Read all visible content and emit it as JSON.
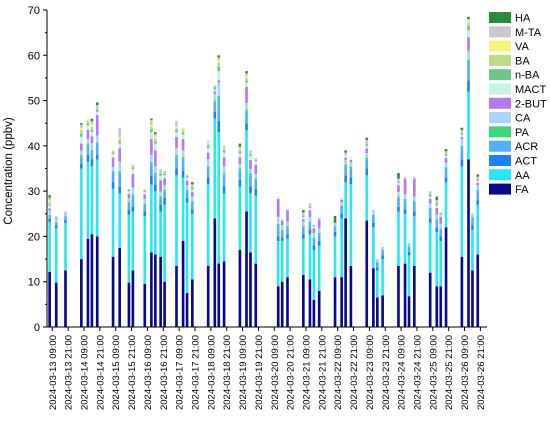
{
  "chart_data": {
    "type": "bar",
    "stacked": true,
    "ylabel": "Concentration (ppbv)",
    "xlabel": "",
    "ylim": [
      0,
      70
    ],
    "yticks": [
      0,
      10,
      20,
      30,
      40,
      50,
      60,
      70
    ],
    "grid": false,
    "legend_placement": "top-right",
    "x_tick_labels": [
      "2024-03-13 09:00",
      "2024-03-13 21:00",
      "2024-03-14 09:00",
      "2024-03-14 21:00",
      "2024-03-15 09:00",
      "2024-03-15 21:00",
      "2024-03-16 09:00",
      "2024-03-16 21:00",
      "2024-03-17 09:00",
      "2024-03-17 21:00",
      "2024-03-18 09:00",
      "2024-03-18 21:00",
      "2024-03-19 09:00",
      "2024-03-19 21:00",
      "2024-03-20 09:00",
      "2024-03-20 21:00",
      "2024-03-21 09:00",
      "2024-03-21 21:00",
      "2024-03-22 09:00",
      "2024-03-22 21:00",
      "2024-03-23 09:00",
      "2024-03-23 21:00",
      "2024-03-24 09:00",
      "2024-03-24 21:00",
      "2024-03-25 09:00",
      "2024-03-25 21:00",
      "2024-03-26 09:00",
      "2024-03-26 21:00"
    ],
    "x_start": "2024-03-13 05:00",
    "x_end": "2024-03-27 02:00",
    "bar_width_hours": 2,
    "series_order_bottom_to_top": [
      "FA",
      "AA",
      "ACT",
      "ACR",
      "PA",
      "CA",
      "2-BUT",
      "MACT",
      "n-BA",
      "BA",
      "VA",
      "M-TA",
      "HA"
    ],
    "colors": {
      "FA": "#08088a",
      "AA": "#29e6f0",
      "ACT": "#1a82f2",
      "ACR": "#4fb0f7",
      "PA": "#3fd67a",
      "CA": "#a8d4ff",
      "2-BUT": "#b478f0",
      "MACT": "#c6f2e8",
      "n-BA": "#6fc48a",
      "BA": "#bcdc8c",
      "VA": "#f4f47c",
      "M-TA": "#c8c8c8",
      "HA": "#2e8b3c"
    },
    "legend_order": [
      "HA",
      "M-TA",
      "VA",
      "BA",
      "n-BA",
      "MACT",
      "2-BUT",
      "CA",
      "PA",
      "ACR",
      "ACT",
      "AA",
      "FA"
    ],
    "samples": [
      {
        "t": "2024-03-13 07:00",
        "FA": 12.2,
        "AA": 11.0,
        "ACT": 0.7,
        "ACR": 0.6,
        "PA": 0.3,
        "CA": 0.9,
        "2-BUT": 0.5,
        "MACT": 0.6,
        "n-BA": 0.3,
        "BA": 0.5,
        "VA": 0.4,
        "M-TA": 0.6,
        "HA": 0.5
      },
      {
        "t": "2024-03-13 12:00",
        "FA": 9.8,
        "AA": 12.0,
        "ACT": 0.6,
        "ACR": 0.6,
        "PA": 0.2,
        "CA": 0.6,
        "2-BUT": 0.3,
        "MACT": 0.3,
        "n-BA": 0.1,
        "BA": 0.0,
        "VA": 0.0,
        "M-TA": 0.0,
        "HA": 0.0
      },
      {
        "t": "2024-03-13 19:00",
        "FA": 12.5,
        "AA": 10.5,
        "ACT": 0.7,
        "ACR": 0.6,
        "PA": 0.2,
        "CA": 0.5,
        "2-BUT": 0.2,
        "MACT": 0.3,
        "n-BA": 0.1,
        "BA": 0.0,
        "VA": 0.0,
        "M-TA": 0.0,
        "HA": 0.0
      },
      {
        "t": "2024-03-14 07:00",
        "FA": 15.0,
        "AA": 20.0,
        "ACT": 1.0,
        "ACR": 1.5,
        "PA": 0.5,
        "CA": 1.0,
        "2-BUT": 1.5,
        "MACT": 1.5,
        "n-BA": 0.7,
        "BA": 0.8,
        "VA": 0.5,
        "M-TA": 0.7,
        "HA": 0.3
      },
      {
        "t": "2024-03-14 12:00",
        "FA": 19.5,
        "AA": 17.0,
        "ACT": 1.5,
        "ACR": 2.0,
        "PA": 0.5,
        "CA": 1.0,
        "2-BUT": 2.0,
        "MACT": 1.0,
        "n-BA": 0.5,
        "BA": 0.6,
        "VA": 0.4,
        "M-TA": 0.0,
        "HA": 0.0
      },
      {
        "t": "2024-03-14 15:00",
        "FA": 20.5,
        "AA": 15.0,
        "ACT": 1.5,
        "ACR": 1.5,
        "PA": 0.6,
        "CA": 1.5,
        "2-BUT": 1.5,
        "MACT": 1.0,
        "n-BA": 0.5,
        "BA": 0.6,
        "VA": 0.6,
        "M-TA": 0.6,
        "HA": 0.6
      },
      {
        "t": "2024-03-14 19:00",
        "FA": 20.0,
        "AA": 17.0,
        "ACT": 1.0,
        "ACR": 2.5,
        "PA": 0.3,
        "CA": 1.5,
        "2-BUT": 4.5,
        "MACT": 0.7,
        "n-BA": 0.4,
        "BA": 0.5,
        "VA": 0.0,
        "M-TA": 0.6,
        "HA": 0.6
      },
      {
        "t": "2024-03-15 07:00",
        "FA": 15.5,
        "AA": 15.0,
        "ACT": 1.5,
        "ACR": 2.0,
        "PA": 0.4,
        "CA": 1.0,
        "2-BUT": 2.0,
        "MACT": 0.8,
        "n-BA": 0.3,
        "BA": 0.3,
        "VA": 0.0,
        "M-TA": 0.2,
        "HA": 0.0
      },
      {
        "t": "2024-03-15 12:00",
        "FA": 17.5,
        "AA": 12.0,
        "ACT": 1.5,
        "ACR": 3.0,
        "PA": 0.5,
        "CA": 2.0,
        "2-BUT": 3.0,
        "MACT": 1.0,
        "n-BA": 0.5,
        "BA": 0.5,
        "VA": 0.3,
        "M-TA": 2.2,
        "HA": 0.0
      },
      {
        "t": "2024-03-15 19:00",
        "FA": 9.8,
        "AA": 15.0,
        "ACT": 1.0,
        "ACR": 1.5,
        "PA": 0.3,
        "CA": 0.8,
        "2-BUT": 1.0,
        "MACT": 0.6,
        "n-BA": 0.3,
        "BA": 0.2,
        "VA": 0.0,
        "M-TA": 0.0,
        "HA": 0.0
      },
      {
        "t": "2024-03-15 22:00",
        "FA": 12.5,
        "AA": 13.0,
        "ACT": 1.0,
        "ACR": 2.5,
        "PA": 0.3,
        "CA": 1.5,
        "2-BUT": 3.0,
        "MACT": 1.0,
        "n-BA": 0.5,
        "BA": 0.4,
        "VA": 0.3,
        "M-TA": 0.0,
        "HA": 0.0
      },
      {
        "t": "2024-03-16 07:00",
        "FA": 9.5,
        "AA": 15.0,
        "ACT": 1.0,
        "ACR": 1.5,
        "PA": 0.3,
        "CA": 1.0,
        "2-BUT": 1.0,
        "MACT": 0.5,
        "n-BA": 0.3,
        "BA": 0.3,
        "VA": 0.0,
        "M-TA": 0.0,
        "HA": 0.0
      },
      {
        "t": "2024-03-16 12:00",
        "FA": 16.5,
        "AA": 15.0,
        "ACT": 2.0,
        "ACR": 2.5,
        "PA": 0.5,
        "CA": 1.5,
        "2-BUT": 3.5,
        "MACT": 1.5,
        "n-BA": 0.6,
        "BA": 0.6,
        "VA": 0.5,
        "M-TA": 1.0,
        "HA": 0.3
      },
      {
        "t": "2024-03-16 15:00",
        "FA": 16.0,
        "AA": 14.0,
        "ACT": 1.5,
        "ACR": 2.0,
        "PA": 0.5,
        "CA": 1.5,
        "2-BUT": 3.5,
        "MACT": 1.5,
        "n-BA": 0.5,
        "BA": 0.6,
        "VA": 0.5,
        "M-TA": 0.5,
        "HA": 0.4
      },
      {
        "t": "2024-03-16 19:00",
        "FA": 15.5,
        "AA": 10.0,
        "ACT": 1.5,
        "ACR": 1.5,
        "PA": 0.4,
        "CA": 1.0,
        "2-BUT": 2.5,
        "MACT": 1.0,
        "n-BA": 0.5,
        "BA": 0.5,
        "VA": 0.0,
        "M-TA": 0.5,
        "HA": 0.0
      },
      {
        "t": "2024-03-16 22:00",
        "FA": 10.0,
        "AA": 17.0,
        "ACT": 1.5,
        "ACR": 1.5,
        "PA": 0.3,
        "CA": 1.0,
        "2-BUT": 1.5,
        "MACT": 0.7,
        "n-BA": 0.3,
        "BA": 0.3,
        "VA": 0.0,
        "M-TA": 0.4,
        "HA": 0.0
      },
      {
        "t": "2024-03-17 07:00",
        "FA": 13.5,
        "AA": 20.0,
        "ACT": 1.5,
        "ACR": 2.5,
        "PA": 0.5,
        "CA": 1.5,
        "2-BUT": 2.5,
        "MACT": 1.0,
        "n-BA": 0.5,
        "BA": 0.5,
        "VA": 0.3,
        "M-TA": 1.2,
        "HA": 0.0
      },
      {
        "t": "2024-03-17 12:00",
        "FA": 19.0,
        "AA": 14.0,
        "ACT": 1.5,
        "ACR": 2.5,
        "PA": 0.5,
        "CA": 1.5,
        "2-BUT": 2.5,
        "MACT": 1.0,
        "n-BA": 0.5,
        "BA": 0.6,
        "VA": 0.4,
        "M-TA": 0.0,
        "HA": 0.0
      },
      {
        "t": "2024-03-17 15:00",
        "FA": 7.5,
        "AA": 20.0,
        "ACT": 1.0,
        "ACR": 1.5,
        "PA": 0.3,
        "CA": 1.0,
        "2-BUT": 1.0,
        "MACT": 0.7,
        "n-BA": 0.3,
        "BA": 0.3,
        "VA": 0.2,
        "M-TA": 0.0,
        "HA": 0.0
      },
      {
        "t": "2024-03-17 19:00",
        "FA": 10.5,
        "AA": 14.5,
        "ACT": 1.0,
        "ACR": 1.5,
        "PA": 0.3,
        "CA": 1.0,
        "2-BUT": 1.0,
        "MACT": 0.6,
        "n-BA": 0.3,
        "BA": 0.3,
        "VA": 0.0,
        "M-TA": 0.5,
        "HA": 0.5
      },
      {
        "t": "2024-03-18 07:00",
        "FA": 13.5,
        "AA": 18.0,
        "ACT": 1.5,
        "ACR": 2.0,
        "PA": 0.5,
        "CA": 1.5,
        "2-BUT": 1.5,
        "MACT": 1.0,
        "n-BA": 0.5,
        "BA": 0.5,
        "VA": 0.3,
        "M-TA": 0.3,
        "HA": 0.0
      },
      {
        "t": "2024-03-18 12:00",
        "FA": 24.0,
        "AA": 22.0,
        "ACT": 1.5,
        "ACR": 2.0,
        "PA": 0.5,
        "CA": 1.5,
        "2-BUT": 0.5,
        "MACT": 0.5,
        "n-BA": 0.5,
        "BA": 0.3,
        "VA": 0.3,
        "M-TA": 0.0,
        "HA": 0.0
      },
      {
        "t": "2024-03-18 15:00",
        "FA": 14.0,
        "AA": 29.0,
        "ACT": 2.5,
        "ACR": 4.5,
        "PA": 1.0,
        "CA": 3.0,
        "2-BUT": 0.5,
        "MACT": 2.0,
        "n-BA": 1.0,
        "BA": 0.8,
        "VA": 0.7,
        "M-TA": 0.5,
        "HA": 0.5
      },
      {
        "t": "2024-03-18 19:00",
        "FA": 14.5,
        "AA": 15.0,
        "ACT": 1.5,
        "ACR": 2.5,
        "PA": 0.5,
        "CA": 1.5,
        "2-BUT": 2.0,
        "MACT": 1.0,
        "n-BA": 0.5,
        "BA": 0.5,
        "VA": 0.0,
        "M-TA": 0.5,
        "HA": 0.0
      },
      {
        "t": "2024-03-19 07:00",
        "FA": 17.0,
        "AA": 14.0,
        "ACT": 1.5,
        "ACR": 2.0,
        "PA": 0.5,
        "CA": 1.0,
        "2-BUT": 1.5,
        "MACT": 0.8,
        "n-BA": 0.5,
        "BA": 0.4,
        "VA": 0.3,
        "M-TA": 0.3,
        "HA": 0.7
      },
      {
        "t": "2024-03-19 12:00",
        "FA": 25.5,
        "AA": 18.0,
        "ACT": 1.5,
        "ACR": 2.5,
        "PA": 0.5,
        "CA": 1.5,
        "2-BUT": 3.5,
        "MACT": 1.0,
        "n-BA": 0.5,
        "BA": 0.5,
        "VA": 0.5,
        "M-TA": 0.5,
        "HA": 0.5
      },
      {
        "t": "2024-03-19 15:00",
        "FA": 16.5,
        "AA": 13.0,
        "ACT": 1.5,
        "ACR": 2.5,
        "PA": 0.4,
        "CA": 1.0,
        "2-BUT": 2.0,
        "MACT": 0.8,
        "n-BA": 0.4,
        "BA": 0.4,
        "VA": 0.0,
        "M-TA": 0.5,
        "HA": 0.0
      },
      {
        "t": "2024-03-19 19:00",
        "FA": 14.0,
        "AA": 15.0,
        "ACT": 1.5,
        "ACR": 2.0,
        "PA": 0.3,
        "CA": 1.0,
        "2-BUT": 2.0,
        "MACT": 0.8,
        "n-BA": 0.3,
        "BA": 0.4,
        "VA": 0.0,
        "M-TA": 0.0,
        "HA": 0.0
      },
      {
        "t": "2024-03-20 12:00",
        "FA": 9.0,
        "AA": 10.0,
        "ACT": 1.0,
        "ACR": 2.5,
        "PA": 0.3,
        "CA": 1.5,
        "2-BUT": 4.0,
        "MACT": 0.5,
        "n-BA": 0.0,
        "BA": 0.0,
        "VA": 0.0,
        "M-TA": 0.0,
        "HA": 0.0
      },
      {
        "t": "2024-03-20 15:00",
        "FA": 10.0,
        "AA": 9.0,
        "ACT": 0.8,
        "ACR": 1.5,
        "PA": 0.2,
        "CA": 1.0,
        "2-BUT": 1.0,
        "MACT": 0.4,
        "n-BA": 0.0,
        "BA": 0.0,
        "VA": 0.0,
        "M-TA": 0.0,
        "HA": 0.0
      },
      {
        "t": "2024-03-20 19:00",
        "FA": 11.0,
        "AA": 8.5,
        "ACT": 1.0,
        "ACR": 1.5,
        "PA": 0.3,
        "CA": 1.0,
        "2-BUT": 2.5,
        "MACT": 0.4,
        "n-BA": 0.0,
        "BA": 0.0,
        "VA": 0.0,
        "M-TA": 0.0,
        "HA": 0.0
      },
      {
        "t": "2024-03-21 07:00",
        "FA": 11.5,
        "AA": 8.0,
        "ACT": 1.0,
        "ACR": 1.5,
        "PA": 0.3,
        "CA": 1.0,
        "2-BUT": 0.5,
        "MACT": 0.5,
        "n-BA": 0.3,
        "BA": 0.2,
        "VA": 0.0,
        "M-TA": 0.5,
        "HA": 0.5
      },
      {
        "t": "2024-03-21 12:00",
        "FA": 10.5,
        "AA": 10.0,
        "ACT": 1.0,
        "ACR": 1.5,
        "PA": 0.3,
        "CA": 1.0,
        "2-BUT": 1.5,
        "MACT": 0.5,
        "n-BA": 0.3,
        "BA": 0.2,
        "VA": 0.0,
        "M-TA": 0.5,
        "HA": 0.0
      },
      {
        "t": "2024-03-21 15:00",
        "FA": 6.0,
        "AA": 11.0,
        "ACT": 1.0,
        "ACR": 1.5,
        "PA": 0.3,
        "CA": 1.0,
        "2-BUT": 1.0,
        "MACT": 0.5,
        "n-BA": 0.2,
        "BA": 0.0,
        "VA": 0.0,
        "M-TA": 0.0,
        "HA": 0.0
      },
      {
        "t": "2024-03-21 19:00",
        "FA": 8.0,
        "AA": 10.0,
        "ACT": 1.0,
        "ACR": 1.5,
        "PA": 0.3,
        "CA": 1.0,
        "2-BUT": 2.0,
        "MACT": 0.5,
        "n-BA": 0.0,
        "BA": 0.0,
        "VA": 0.0,
        "M-TA": 0.0,
        "HA": 0.0
      },
      {
        "t": "2024-03-22 07:00",
        "FA": 11.0,
        "AA": 9.0,
        "ACT": 1.0,
        "ACR": 1.0,
        "PA": 0.3,
        "CA": 0.5,
        "2-BUT": 0.0,
        "MACT": 0.0,
        "n-BA": 0.0,
        "BA": 0.0,
        "VA": 0.0,
        "M-TA": 0.2,
        "HA": 1.5
      },
      {
        "t": "2024-03-22 12:00",
        "FA": 11.0,
        "AA": 13.0,
        "ACT": 1.0,
        "ACR": 1.5,
        "PA": 0.3,
        "CA": 0.8,
        "2-BUT": 0.5,
        "MACT": 0.4,
        "n-BA": 0.0,
        "BA": 0.0,
        "VA": 0.0,
        "M-TA": 0.0,
        "HA": 0.0
      },
      {
        "t": "2024-03-22 15:00",
        "FA": 24.0,
        "AA": 8.0,
        "ACT": 1.5,
        "ACR": 2.0,
        "PA": 0.4,
        "CA": 1.0,
        "2-BUT": 0.5,
        "MACT": 0.6,
        "n-BA": 0.0,
        "BA": 0.0,
        "VA": 0.0,
        "M-TA": 0.5,
        "HA": 0.5
      },
      {
        "t": "2024-03-22 19:00",
        "FA": 13.5,
        "AA": 18.0,
        "ACT": 1.5,
        "ACR": 2.0,
        "PA": 0.4,
        "CA": 1.0,
        "2-BUT": 0.5,
        "MACT": 0.6,
        "n-BA": 0.0,
        "BA": 0.0,
        "VA": 0.0,
        "M-TA": 0.0,
        "HA": 0.0
      },
      {
        "t": "2024-03-23 07:00",
        "FA": 23.5,
        "AA": 10.0,
        "ACT": 1.5,
        "ACR": 2.0,
        "PA": 0.4,
        "CA": 1.0,
        "2-BUT": 1.0,
        "MACT": 0.6,
        "n-BA": 0.3,
        "BA": 0.3,
        "VA": 0.0,
        "M-TA": 0.7,
        "HA": 0.5
      },
      {
        "t": "2024-03-23 12:00",
        "FA": 13.0,
        "AA": 9.0,
        "ACT": 1.0,
        "ACR": 1.5,
        "PA": 0.3,
        "CA": 1.0,
        "2-BUT": 0.0,
        "MACT": 0.0,
        "n-BA": 0.0,
        "BA": 0.0,
        "VA": 0.0,
        "M-TA": 0.0,
        "HA": 0.0
      },
      {
        "t": "2024-03-23 15:00",
        "FA": 6.5,
        "AA": 6.0,
        "ACT": 0.7,
        "ACR": 1.0,
        "PA": 0.2,
        "CA": 0.6,
        "2-BUT": 0.0,
        "MACT": 0.0,
        "n-BA": 0.0,
        "BA": 0.0,
        "VA": 0.0,
        "M-TA": 0.0,
        "HA": 0.0
      },
      {
        "t": "2024-03-23 19:00",
        "FA": 7.0,
        "AA": 8.0,
        "ACT": 0.8,
        "ACR": 1.0,
        "PA": 0.2,
        "CA": 0.7,
        "2-BUT": 0.0,
        "MACT": 0.0,
        "n-BA": 0.0,
        "BA": 0.0,
        "VA": 0.0,
        "M-TA": 0.0,
        "HA": 0.0
      },
      {
        "t": "2024-03-24 07:00",
        "FA": 13.5,
        "AA": 12.0,
        "ACT": 1.0,
        "ACR": 2.0,
        "PA": 0.3,
        "CA": 1.0,
        "2-BUT": 1.5,
        "MACT": 0.5,
        "n-BA": 0.3,
        "BA": 0.2,
        "VA": 0.0,
        "M-TA": 0.5,
        "HA": 1.2
      },
      {
        "t": "2024-03-24 12:00",
        "FA": 14.0,
        "AA": 11.0,
        "ACT": 1.0,
        "ACR": 2.0,
        "PA": 0.3,
        "CA": 1.0,
        "2-BUT": 3.5,
        "MACT": 0.5,
        "n-BA": 0.0,
        "BA": 0.0,
        "VA": 0.0,
        "M-TA": 0.0,
        "HA": 0.0
      },
      {
        "t": "2024-03-24 15:00",
        "FA": 6.8,
        "AA": 9.0,
        "ACT": 0.8,
        "ACR": 1.0,
        "PA": 0.2,
        "CA": 0.7,
        "2-BUT": 0.0,
        "MACT": 0.0,
        "n-BA": 0.0,
        "BA": 0.0,
        "VA": 0.0,
        "M-TA": 0.0,
        "HA": 0.0
      },
      {
        "t": "2024-03-24 19:00",
        "FA": 13.5,
        "AA": 11.0,
        "ACT": 1.0,
        "ACR": 2.0,
        "PA": 0.3,
        "CA": 1.0,
        "2-BUT": 4.0,
        "MACT": 0.5,
        "n-BA": 0.0,
        "BA": 0.0,
        "VA": 0.0,
        "M-TA": 0.0,
        "HA": 0.0
      },
      {
        "t": "2024-03-25 07:00",
        "FA": 12.0,
        "AA": 11.0,
        "ACT": 1.0,
        "ACR": 2.0,
        "PA": 0.3,
        "CA": 1.0,
        "2-BUT": 1.0,
        "MACT": 0.5,
        "n-BA": 0.5,
        "BA": 0.3,
        "VA": 0.0,
        "M-TA": 0.4,
        "HA": 0.0
      },
      {
        "t": "2024-03-25 12:00",
        "FA": 9.0,
        "AA": 12.0,
        "ACT": 1.0,
        "ACR": 1.5,
        "PA": 0.3,
        "CA": 1.0,
        "2-BUT": 1.5,
        "MACT": 0.5,
        "n-BA": 0.5,
        "BA": 0.3,
        "VA": 0.0,
        "M-TA": 0.4,
        "HA": 0.8
      },
      {
        "t": "2024-03-25 15:00",
        "FA": 9.0,
        "AA": 10.0,
        "ACT": 1.0,
        "ACR": 1.5,
        "PA": 0.3,
        "CA": 1.0,
        "2-BUT": 1.5,
        "MACT": 0.5,
        "n-BA": 0.3,
        "BA": 0.2,
        "VA": 0.0,
        "M-TA": 0.0,
        "HA": 0.0
      },
      {
        "t": "2024-03-25 19:00",
        "FA": 22.0,
        "AA": 10.0,
        "ACT": 1.0,
        "ACR": 2.0,
        "PA": 0.3,
        "CA": 1.0,
        "2-BUT": 1.0,
        "MACT": 0.5,
        "n-BA": 0.3,
        "BA": 0.3,
        "VA": 0.0,
        "M-TA": 0.4,
        "HA": 0.5
      },
      {
        "t": "2024-03-26 07:00",
        "FA": 15.5,
        "AA": 20.0,
        "ACT": 1.5,
        "ACR": 2.5,
        "PA": 0.5,
        "CA": 1.5,
        "2-BUT": 0.5,
        "MACT": 0.5,
        "n-BA": 0.3,
        "BA": 0.2,
        "VA": 0.0,
        "M-TA": 0.5,
        "HA": 0.5
      },
      {
        "t": "2024-03-26 12:00",
        "FA": 37.0,
        "AA": 15.0,
        "ACT": 2.5,
        "ACR": 3.5,
        "PA": 1.0,
        "CA": 2.0,
        "2-BUT": 3.0,
        "MACT": 1.5,
        "n-BA": 1.0,
        "BA": 0.8,
        "VA": 0.5,
        "M-TA": 0.2,
        "HA": 0.5
      },
      {
        "t": "2024-03-26 15:00",
        "FA": 12.5,
        "AA": 9.0,
        "ACT": 1.0,
        "ACR": 1.5,
        "PA": 0.3,
        "CA": 0.8,
        "2-BUT": 0.0,
        "MACT": 0.0,
        "n-BA": 0.0,
        "BA": 0.0,
        "VA": 0.0,
        "M-TA": 0.0,
        "HA": 0.0
      },
      {
        "t": "2024-03-26 19:00",
        "FA": 16.0,
        "AA": 11.0,
        "ACT": 1.0,
        "ACR": 2.0,
        "PA": 0.3,
        "CA": 1.0,
        "2-BUT": 0.5,
        "MACT": 0.5,
        "n-BA": 0.3,
        "BA": 0.3,
        "VA": 0.0,
        "M-TA": 0.3,
        "HA": 0.5
      }
    ]
  }
}
